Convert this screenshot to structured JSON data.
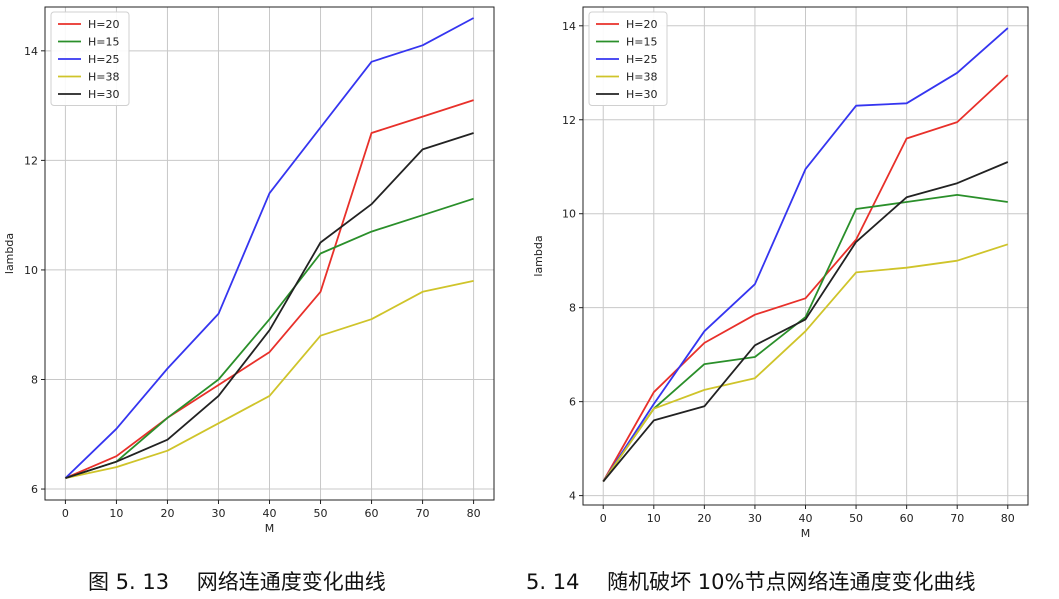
{
  "chart_data": [
    {
      "type": "line",
      "xlabel": "M",
      "ylabel": "lambda",
      "xlim": [
        -4,
        84
      ],
      "ylim": [
        5.8,
        14.8
      ],
      "x": [
        0,
        10,
        20,
        30,
        40,
        50,
        60,
        70,
        80
      ],
      "xticks": [
        0,
        10,
        20,
        30,
        40,
        50,
        60,
        70,
        80
      ],
      "yticks": [
        6,
        8,
        10,
        12,
        14
      ],
      "grid": true,
      "legend": "top-left",
      "series": [
        {
          "name": "H=20",
          "color": "#e8302a",
          "values": [
            6.2,
            6.6,
            7.3,
            7.9,
            8.5,
            9.6,
            12.5,
            12.8,
            13.1
          ]
        },
        {
          "name": "H=15",
          "color": "#2a8f2a",
          "values": [
            6.2,
            6.5,
            7.3,
            8.0,
            9.1,
            10.3,
            10.7,
            11.0,
            11.3
          ]
        },
        {
          "name": "H=25",
          "color": "#3535f0",
          "values": [
            6.2,
            7.1,
            8.2,
            9.2,
            11.4,
            12.6,
            13.8,
            14.1,
            14.6
          ]
        },
        {
          "name": "H=38",
          "color": "#cfc42a",
          "values": [
            6.2,
            6.4,
            6.7,
            7.2,
            7.7,
            8.8,
            9.1,
            9.6,
            9.8
          ]
        },
        {
          "name": "H=30",
          "color": "#222222",
          "values": [
            6.2,
            6.5,
            6.9,
            7.7,
            8.9,
            10.5,
            11.2,
            12.2,
            12.5
          ]
        }
      ]
    },
    {
      "type": "line",
      "xlabel": "M",
      "ylabel": "lambda",
      "xlim": [
        -4,
        84
      ],
      "ylim": [
        3.8,
        14.4
      ],
      "x": [
        0,
        10,
        20,
        30,
        40,
        50,
        60,
        70,
        80
      ],
      "xticks": [
        0,
        10,
        20,
        30,
        40,
        50,
        60,
        70,
        80
      ],
      "yticks": [
        4,
        6,
        8,
        10,
        12,
        14
      ],
      "grid": true,
      "legend": "top-left",
      "series": [
        {
          "name": "H=20",
          "color": "#e8302a",
          "values": [
            4.3,
            6.2,
            7.25,
            7.85,
            8.2,
            9.45,
            11.6,
            11.95,
            12.95
          ]
        },
        {
          "name": "H=15",
          "color": "#2a8f2a",
          "values": [
            4.3,
            5.85,
            6.8,
            6.95,
            7.8,
            10.1,
            10.25,
            10.4,
            10.25
          ]
        },
        {
          "name": "H=25",
          "color": "#3535f0",
          "values": [
            4.3,
            5.95,
            7.5,
            8.5,
            10.95,
            12.3,
            12.35,
            13.0,
            13.95
          ]
        },
        {
          "name": "H=38",
          "color": "#cfc42a",
          "values": [
            4.3,
            5.85,
            6.25,
            6.5,
            7.5,
            8.75,
            8.85,
            9.0,
            9.35
          ]
        },
        {
          "name": "H=30",
          "color": "#222222",
          "values": [
            4.3,
            5.6,
            5.9,
            7.2,
            7.75,
            9.4,
            10.35,
            10.65,
            11.1
          ]
        }
      ]
    }
  ],
  "captions": {
    "left": "图 5. 13　 网络连通度变化曲线",
    "right": "5. 14　 随机破坏 10%节点网络连通度变化曲线"
  }
}
